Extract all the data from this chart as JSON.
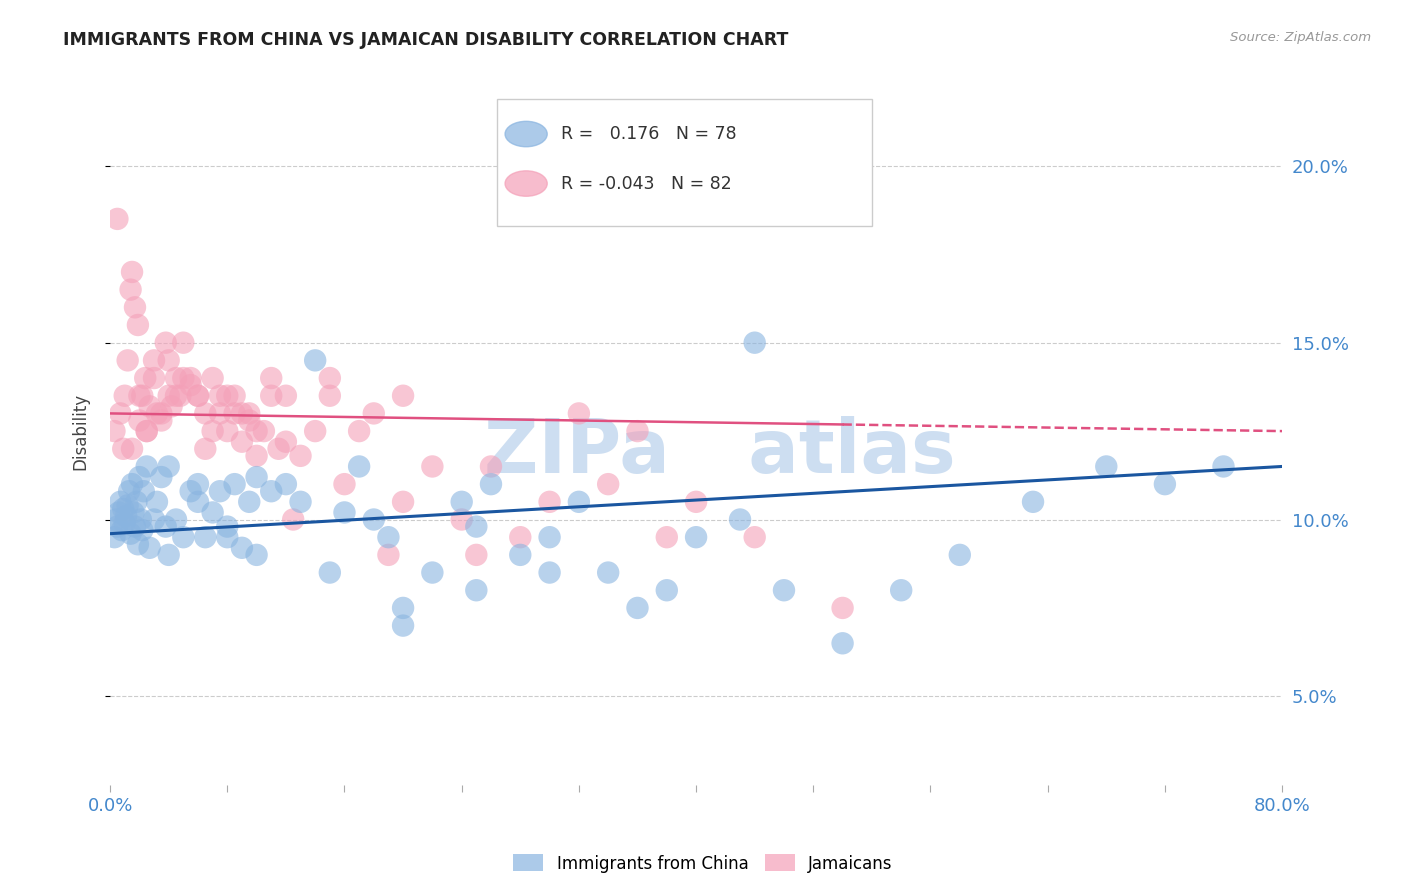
{
  "title": "IMMIGRANTS FROM CHINA VS JAMAICAN DISABILITY CORRELATION CHART",
  "source": "Source: ZipAtlas.com",
  "ylabel": "Disability",
  "y_tick_values": [
    5.0,
    10.0,
    15.0,
    20.0
  ],
  "xlim": [
    0.0,
    80.0
  ],
  "ylim": [
    2.5,
    22.5
  ],
  "blue_R": 0.176,
  "blue_N": 78,
  "pink_R": -0.043,
  "pink_N": 82,
  "blue_color": "#89b4e0",
  "pink_color": "#f4a0b8",
  "blue_line_color": "#1a56a0",
  "pink_line_color": "#e05080",
  "watermark_color": "#c5d9ef",
  "legend1": "Immigrants from China",
  "legend2": "Jamaicans",
  "blue_line_start_y": 9.6,
  "blue_line_end_y": 11.5,
  "pink_line_start_y": 13.0,
  "pink_line_end_y": 12.5,
  "blue_x": [
    0.3,
    0.4,
    0.5,
    0.6,
    0.7,
    0.8,
    0.9,
    1.0,
    1.1,
    1.2,
    1.3,
    1.4,
    1.5,
    1.6,
    1.7,
    1.8,
    1.9,
    2.0,
    2.1,
    2.2,
    2.3,
    2.5,
    2.7,
    3.0,
    3.2,
    3.5,
    3.8,
    4.0,
    4.5,
    5.0,
    5.5,
    6.0,
    6.5,
    7.0,
    7.5,
    8.0,
    8.5,
    9.0,
    9.5,
    10.0,
    11.0,
    12.0,
    13.0,
    14.0,
    15.0,
    16.0,
    17.0,
    18.0,
    19.0,
    20.0,
    22.0,
    24.0,
    25.0,
    26.0,
    28.0,
    30.0,
    32.0,
    34.0,
    36.0,
    38.0,
    40.0,
    43.0,
    46.0,
    50.0,
    54.0,
    58.0,
    63.0,
    68.0,
    72.0,
    76.0,
    44.0,
    20.0,
    25.0,
    30.0,
    10.0,
    8.0,
    6.0,
    4.0
  ],
  "blue_y": [
    9.5,
    10.0,
    9.8,
    10.2,
    10.5,
    9.7,
    10.3,
    9.9,
    10.1,
    10.4,
    10.8,
    9.6,
    11.0,
    10.2,
    9.8,
    10.5,
    9.3,
    11.2,
    10.0,
    9.7,
    10.8,
    11.5,
    9.2,
    10.0,
    10.5,
    11.2,
    9.8,
    11.5,
    10.0,
    9.5,
    10.8,
    11.0,
    9.5,
    10.2,
    10.8,
    9.5,
    11.0,
    9.2,
    10.5,
    11.2,
    10.8,
    11.0,
    10.5,
    14.5,
    8.5,
    10.2,
    11.5,
    10.0,
    9.5,
    7.5,
    8.5,
    10.5,
    9.8,
    11.0,
    9.0,
    9.5,
    10.5,
    8.5,
    7.5,
    8.0,
    9.5,
    10.0,
    8.0,
    6.5,
    8.0,
    9.0,
    10.5,
    11.5,
    11.0,
    11.5,
    15.0,
    7.0,
    8.0,
    8.5,
    9.0,
    9.8,
    10.5,
    9.0
  ],
  "pink_x": [
    0.3,
    0.5,
    0.7,
    0.9,
    1.0,
    1.2,
    1.4,
    1.5,
    1.7,
    1.9,
    2.0,
    2.2,
    2.4,
    2.5,
    2.7,
    3.0,
    3.2,
    3.5,
    3.8,
    4.0,
    4.2,
    4.5,
    4.8,
    5.0,
    5.5,
    6.0,
    6.5,
    7.0,
    7.5,
    8.0,
    8.5,
    9.0,
    9.5,
    10.0,
    10.5,
    11.0,
    11.5,
    12.0,
    12.5,
    13.0,
    14.0,
    15.0,
    16.0,
    17.0,
    18.0,
    19.0,
    20.0,
    22.0,
    24.0,
    25.0,
    26.0,
    28.0,
    30.0,
    32.0,
    34.0,
    36.0,
    38.0,
    40.0,
    44.0,
    50.0,
    2.0,
    3.0,
    4.0,
    5.0,
    6.0,
    7.0,
    8.0,
    9.0,
    10.0,
    12.0,
    15.0,
    20.0,
    1.5,
    2.5,
    3.5,
    4.5,
    5.5,
    6.5,
    7.5,
    8.5,
    9.5,
    11.0
  ],
  "pink_y": [
    12.5,
    18.5,
    13.0,
    12.0,
    13.5,
    14.5,
    16.5,
    17.0,
    16.0,
    15.5,
    12.8,
    13.5,
    14.0,
    12.5,
    13.2,
    14.5,
    13.0,
    12.8,
    15.0,
    14.5,
    13.2,
    14.0,
    13.5,
    15.0,
    13.8,
    13.5,
    13.0,
    14.0,
    13.5,
    12.5,
    13.0,
    12.2,
    12.8,
    11.8,
    12.5,
    13.5,
    12.0,
    12.2,
    10.0,
    11.8,
    12.5,
    13.5,
    11.0,
    12.5,
    13.0,
    9.0,
    10.5,
    11.5,
    10.0,
    9.0,
    11.5,
    9.5,
    10.5,
    13.0,
    11.0,
    12.5,
    9.5,
    10.5,
    9.5,
    7.5,
    13.5,
    14.0,
    13.5,
    14.0,
    13.5,
    12.5,
    13.5,
    13.0,
    12.5,
    13.5,
    14.0,
    13.5,
    12.0,
    12.5,
    13.0,
    13.5,
    14.0,
    12.0,
    13.0,
    13.5,
    13.0,
    14.0
  ]
}
